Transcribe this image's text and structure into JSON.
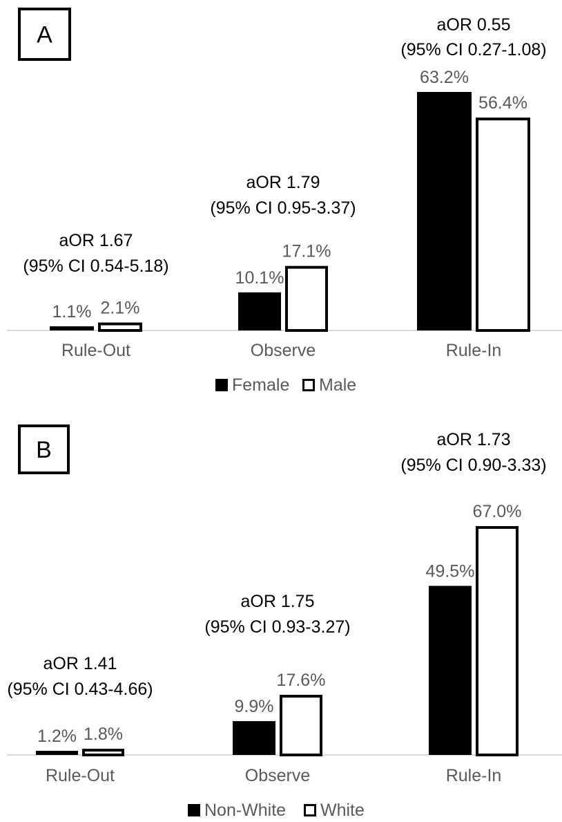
{
  "chart_data": [
    {
      "type": "bar",
      "panel_label": "A",
      "categories": [
        "Rule-Out",
        "Observe",
        "Rule-In"
      ],
      "series": [
        {
          "name": "Female",
          "values": [
            1.1,
            10.1,
            63.2
          ],
          "color": "#000000"
        },
        {
          "name": "Male",
          "values": [
            2.1,
            17.1,
            56.4
          ],
          "color": "#ffffff"
        }
      ],
      "value_labels": [
        [
          "1.1%",
          "10.1%",
          "63.2%"
        ],
        [
          "2.1%",
          "17.1%",
          "56.4%"
        ]
      ],
      "annotations": [
        {
          "line1": "aOR 1.67",
          "line2": "(95% CI 0.54-5.18)"
        },
        {
          "line1": "aOR 1.79",
          "line2": "(95% CI 0.95-3.37)"
        },
        {
          "line1": "aOR 0.55",
          "line2": "(95% CI 0.27-1.08)"
        }
      ],
      "ylim": [
        0,
        63.2
      ],
      "legend_position": "bottom"
    },
    {
      "type": "bar",
      "panel_label": "B",
      "categories": [
        "Rule-Out",
        "Observe",
        "Rule-In"
      ],
      "series": [
        {
          "name": "Non-White",
          "values": [
            1.2,
            9.9,
            49.5
          ],
          "color": "#000000"
        },
        {
          "name": "White",
          "values": [
            1.8,
            17.6,
            67.0
          ],
          "color": "#ffffff"
        }
      ],
      "value_labels": [
        [
          "1.2%",
          "9.9%",
          "49.5%"
        ],
        [
          "1.8%",
          "17.6%",
          "67.0%"
        ]
      ],
      "annotations": [
        {
          "line1": "aOR 1.41",
          "line2": "(95% CI 0.43-4.66)"
        },
        {
          "line1": "aOR 1.75",
          "line2": "(95% CI 0.93-3.27)"
        },
        {
          "line1": "aOR 1.73",
          "line2": "(95% CI 0.90-3.33)"
        }
      ],
      "ylim": [
        0,
        67.0
      ],
      "legend_position": "bottom"
    }
  ]
}
